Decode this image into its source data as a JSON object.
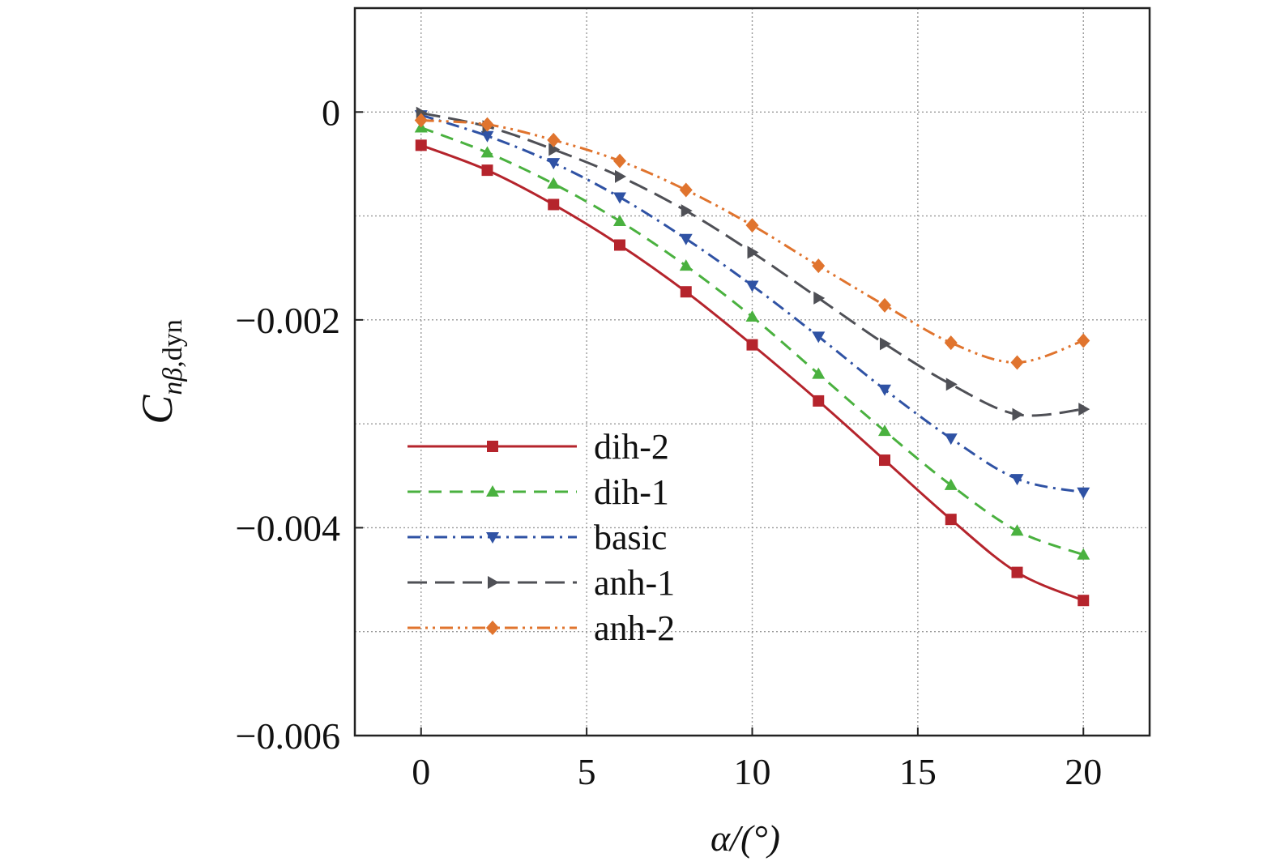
{
  "chart_data": {
    "type": "line",
    "title": "",
    "xlabel": "α/(°)",
    "ylabel": {
      "main": "C",
      "sub_italic": "nβ",
      "sub_roman": ",dyn"
    },
    "xlim": [
      -2,
      22
    ],
    "ylim": [
      -0.006,
      0.001
    ],
    "xticks": [
      0,
      5,
      10,
      15,
      20
    ],
    "xtick_labels": [
      "0",
      "5",
      "10",
      "15",
      "20"
    ],
    "yticks": [
      0,
      -0.002,
      -0.004,
      -0.006
    ],
    "ytick_labels": [
      "0",
      "−0.002",
      "−0.004",
      "−0.006"
    ],
    "grid_x": [
      0,
      5,
      10,
      15,
      20
    ],
    "grid_y": [
      0,
      -0.001,
      -0.002,
      -0.003,
      -0.004,
      -0.005
    ],
    "grid": true,
    "legend_position": "lower-left",
    "x": [
      0,
      2,
      4,
      6,
      8,
      10,
      12,
      14,
      16,
      18,
      20
    ],
    "series": [
      {
        "name": "dih-2",
        "color": "#b5242c",
        "dash": "solid",
        "marker": "square",
        "values": [
          -0.00032,
          -0.00056,
          -0.00089,
          -0.00128,
          -0.00173,
          -0.00224,
          -0.00278,
          -0.00335,
          -0.00392,
          -0.00443,
          -0.0047
        ]
      },
      {
        "name": "dih-1",
        "color": "#4ab13f",
        "dash": "dashed",
        "marker": "triangle-up",
        "values": [
          -0.00015,
          -0.00039,
          -0.00069,
          -0.00105,
          -0.00148,
          -0.00197,
          -0.00252,
          -0.00307,
          -0.00359,
          -0.00403,
          -0.00426
        ]
      },
      {
        "name": "basic",
        "color": "#2f52a4",
        "dash": "dashdot",
        "marker": "triangle-down",
        "values": [
          -3e-05,
          -0.00023,
          -0.00049,
          -0.00082,
          -0.00122,
          -0.00167,
          -0.00216,
          -0.00267,
          -0.00314,
          -0.00353,
          -0.00366
        ]
      },
      {
        "name": "anh-1",
        "color": "#4f5056",
        "dash": "longdash",
        "marker": "triangle-right",
        "values": [
          -1e-05,
          -0.00014,
          -0.00036,
          -0.00062,
          -0.00095,
          -0.00135,
          -0.00179,
          -0.00223,
          -0.00262,
          -0.00291,
          -0.00286
        ]
      },
      {
        "name": "anh-2",
        "color": "#e0742e",
        "dash": "dashdotdot",
        "marker": "diamond",
        "values": [
          -8e-05,
          -0.00012,
          -0.00027,
          -0.00047,
          -0.00075,
          -0.00109,
          -0.00148,
          -0.00186,
          -0.00222,
          -0.00241,
          -0.0022
        ]
      }
    ]
  }
}
